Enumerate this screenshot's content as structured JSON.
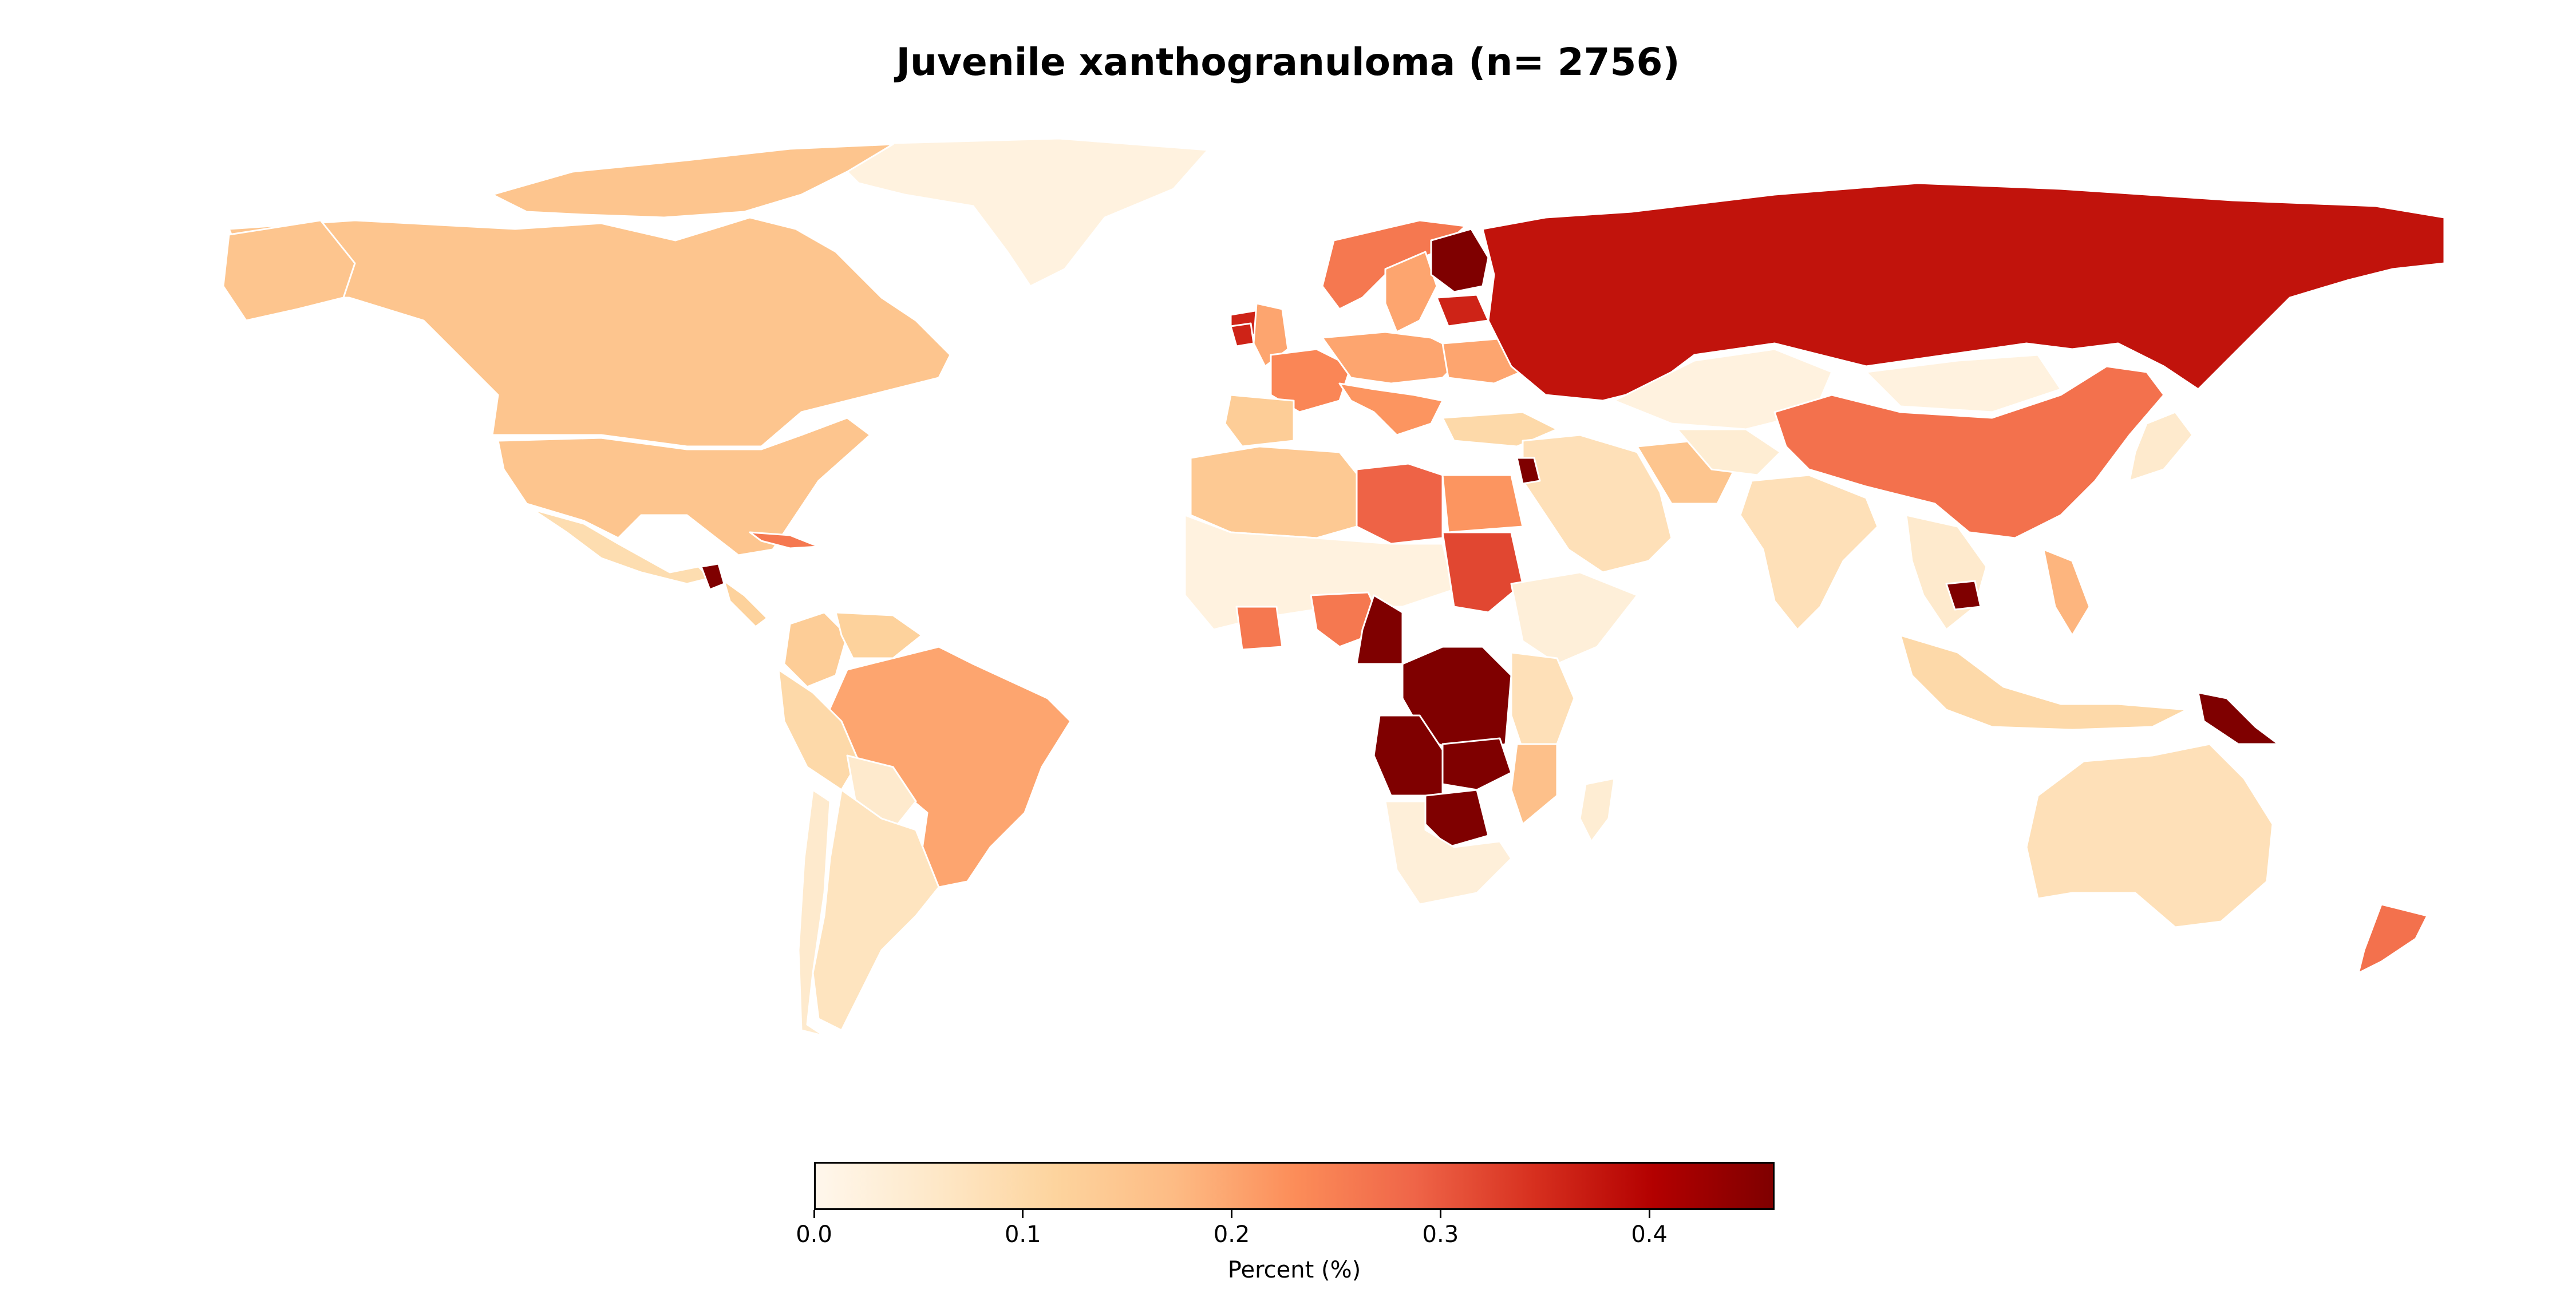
{
  "chart_data": {
    "type": "choropleth",
    "title": "Juvenile xanthogranuloma (n= 2756)",
    "colorbar": {
      "label": "Percent (%)",
      "min": 0.0,
      "max": 0.46,
      "ticks": [
        "0.0",
        "0.1",
        "0.2",
        "0.3",
        "0.4"
      ],
      "tick_values": [
        0.0,
        0.1,
        0.2,
        0.3,
        0.4
      ],
      "colormap": "OrRd",
      "stops": [
        "#fff7ec",
        "#fee8c8",
        "#fdd49e",
        "#fdbb84",
        "#fc8d59",
        "#ef6548",
        "#d7301f",
        "#b30000",
        "#7f0000"
      ]
    },
    "regions": [
      {
        "name": "Russia",
        "value": 0.38
      },
      {
        "name": "Finland",
        "value": 0.46
      },
      {
        "name": "Angola",
        "value": 0.46
      },
      {
        "name": "DR Congo",
        "value": 0.46
      },
      {
        "name": "Zambia",
        "value": 0.46
      },
      {
        "name": "Zimbabwe",
        "value": 0.46
      },
      {
        "name": "Cameroon",
        "value": 0.46
      },
      {
        "name": "Papua New Guinea",
        "value": 0.46
      },
      {
        "name": "Guatemala",
        "value": 0.46
      },
      {
        "name": "Cambodia",
        "value": 0.46
      },
      {
        "name": "Jordan",
        "value": 0.46
      },
      {
        "name": "Iceland",
        "value": 0.36
      },
      {
        "name": "Ireland",
        "value": 0.36
      },
      {
        "name": "Baltic States",
        "value": 0.36
      },
      {
        "name": "Sudan",
        "value": 0.32
      },
      {
        "name": "Libya",
        "value": 0.29
      },
      {
        "name": "China",
        "value": 0.27
      },
      {
        "name": "New Zealand",
        "value": 0.27
      },
      {
        "name": "Nigeria",
        "value": 0.26
      },
      {
        "name": "Ghana",
        "value": 0.26
      },
      {
        "name": "Svalbard",
        "value": 0.26
      },
      {
        "name": "Cuba",
        "value": 0.26
      },
      {
        "name": "France",
        "value": 0.24
      },
      {
        "name": "Sweden",
        "value": 0.2
      },
      {
        "name": "Brazil",
        "value": 0.2
      },
      {
        "name": "Philippines",
        "value": 0.18
      },
      {
        "name": "Mozambique",
        "value": 0.16
      },
      {
        "name": "Canada",
        "value": 0.15
      },
      {
        "name": "United States",
        "value": 0.15
      },
      {
        "name": "Algeria",
        "value": 0.14
      },
      {
        "name": "Colombia",
        "value": 0.13
      },
      {
        "name": "Kazakhstan",
        "value": 0.02
      },
      {
        "name": "Mongolia",
        "value": 0.02
      },
      {
        "name": "India",
        "value": 0.08
      },
      {
        "name": "Australia",
        "value": 0.08
      },
      {
        "name": "Argentina",
        "value": 0.07
      },
      {
        "name": "Indonesia",
        "value": 0.1
      },
      {
        "name": "Saudi Arabia",
        "value": 0.08
      },
      {
        "name": "Greenland",
        "value": 0.02
      },
      {
        "name": "West Africa (Sahel)",
        "value": 0.02
      },
      {
        "name": "South Africa",
        "value": 0.03
      },
      {
        "name": "Madagascar",
        "value": 0.04
      }
    ]
  }
}
